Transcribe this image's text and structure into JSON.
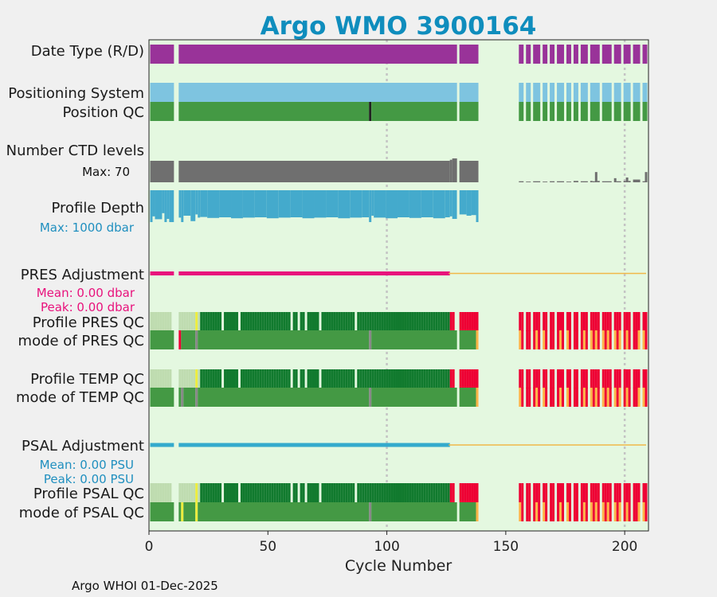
{
  "chart_data": {
    "type": "timeline-heatmap",
    "title": "Argo WMO 3900164",
    "xlabel": "Cycle Number",
    "xlim": [
      0,
      210
    ],
    "xticks": [
      0,
      50,
      100,
      150,
      200
    ],
    "xtick_labels": [
      "0",
      "50",
      "100",
      "150",
      "200"
    ],
    "reference_lines": [
      100,
      200
    ],
    "cycles_present": [
      [
        1,
        10
      ],
      [
        13,
        129
      ],
      [
        131,
        138
      ],
      [
        156,
        157
      ],
      [
        159,
        160
      ],
      [
        162,
        164
      ],
      [
        166,
        167
      ],
      [
        169,
        170
      ],
      [
        172,
        174
      ],
      [
        176,
        177
      ],
      [
        179,
        180
      ],
      [
        182,
        184
      ],
      [
        186,
        189
      ],
      [
        191,
        194
      ],
      [
        196,
        198
      ],
      [
        200,
        202
      ],
      [
        204,
        206
      ],
      [
        208,
        209
      ]
    ],
    "rows": {
      "data_type": {
        "label": "Date Type (R/D)",
        "value": "R",
        "color": "#993399"
      },
      "positioning_system": {
        "label": "Positioning System",
        "color": "#7ec4e0"
      },
      "position_qc": {
        "label": "Position QC",
        "color": "#449944",
        "flag_cycles": [
          93
        ],
        "flag_color": "#222222"
      },
      "n_levels": {
        "label": "Number CTD levels",
        "max_label": "Max: 70",
        "max": 70,
        "color": "#6f6f6f",
        "values": [
          [
            1,
            10,
            63
          ],
          [
            13,
            126,
            63
          ],
          [
            127,
            127,
            66
          ],
          [
            128,
            129,
            70
          ],
          [
            131,
            138,
            63
          ],
          [
            156,
            157,
            3
          ],
          [
            159,
            160,
            2
          ],
          [
            162,
            164,
            3
          ],
          [
            166,
            167,
            2
          ],
          [
            169,
            170,
            3
          ],
          [
            172,
            174,
            3
          ],
          [
            176,
            177,
            2
          ],
          [
            179,
            180,
            4
          ],
          [
            182,
            184,
            3
          ],
          [
            186,
            186,
            4
          ],
          [
            187,
            187,
            3
          ],
          [
            188,
            188,
            30
          ],
          [
            189,
            189,
            4
          ],
          [
            191,
            194,
            3
          ],
          [
            196,
            196,
            12
          ],
          [
            197,
            198,
            3
          ],
          [
            200,
            200,
            4
          ],
          [
            201,
            201,
            14
          ],
          [
            202,
            202,
            4
          ],
          [
            204,
            206,
            8
          ],
          [
            208,
            208,
            3
          ],
          [
            209,
            209,
            30
          ]
        ]
      },
      "profile_depth": {
        "label": "Profile Depth",
        "max_label": "Max: 1000 dbar",
        "max": 1000,
        "color": "#44aacc",
        "values": [
          [
            1,
            1,
            1000
          ],
          [
            2,
            2,
            820
          ],
          [
            3,
            5,
            910
          ],
          [
            6,
            6,
            720
          ],
          [
            7,
            7,
            1000
          ],
          [
            8,
            8,
            900
          ],
          [
            9,
            10,
            1000
          ],
          [
            13,
            13,
            860
          ],
          [
            14,
            14,
            1000
          ],
          [
            15,
            17,
            800
          ],
          [
            18,
            19,
            970
          ],
          [
            20,
            20,
            760
          ],
          [
            21,
            21,
            860
          ],
          [
            22,
            24,
            840
          ],
          [
            25,
            29,
            870
          ],
          [
            30,
            34,
            850
          ],
          [
            35,
            39,
            880
          ],
          [
            40,
            44,
            860
          ],
          [
            45,
            49,
            850
          ],
          [
            50,
            54,
            880
          ],
          [
            55,
            59,
            860
          ],
          [
            60,
            64,
            850
          ],
          [
            65,
            69,
            880
          ],
          [
            70,
            74,
            860
          ],
          [
            75,
            79,
            850
          ],
          [
            80,
            84,
            880
          ],
          [
            85,
            89,
            860
          ],
          [
            90,
            92,
            850
          ],
          [
            93,
            93,
            1000
          ],
          [
            94,
            94,
            800
          ],
          [
            95,
            99,
            860
          ],
          [
            100,
            104,
            880
          ],
          [
            105,
            109,
            850
          ],
          [
            110,
            114,
            870
          ],
          [
            115,
            119,
            850
          ],
          [
            120,
            124,
            880
          ],
          [
            125,
            126,
            850
          ],
          [
            127,
            127,
            820
          ],
          [
            128,
            129,
            900
          ],
          [
            131,
            133,
            760
          ],
          [
            134,
            135,
            800
          ],
          [
            136,
            137,
            780
          ],
          [
            138,
            138,
            1000
          ]
        ]
      },
      "pres_adjustment": {
        "label": "PRES Adjustment",
        "mean_label": "Mean: 0.00 dbar",
        "peak_label": "Peak: 0.00 dbar",
        "color": "#e8127c",
        "adjusted_segments": [
          [
            1,
            10
          ],
          [
            13,
            126
          ]
        ],
        "line_color": "#f0b848",
        "line_range": [
          126,
          209
        ]
      },
      "profile_pres_qc": {
        "label": "Profile PRES QC",
        "mode_label": "mode of PRES QC"
      },
      "profile_temp_qc": {
        "label": "Profile TEMP QC",
        "mode_label": "mode of TEMP QC"
      },
      "psal_adjustment": {
        "label": "PSAL Adjustment",
        "mean_label": "Mean: 0.00 PSU",
        "peak_label": "Peak: 0.00 PSU",
        "color": "#33aacc",
        "adjusted_segments": [
          [
            1,
            10
          ],
          [
            13,
            126
          ]
        ],
        "line_color": "#f0b848",
        "line_range": [
          126,
          209
        ]
      },
      "profile_psal_qc": {
        "label": "Profile PSAL QC",
        "mode_label": "mode of PSAL QC"
      }
    },
    "qc_colors": {
      "A": "#117a2e",
      "B": "#bfdcb0",
      "F": "#ee0033",
      "good": "#449944",
      "probably_good": "#eded3c",
      "bad": "#ee0033",
      "probably_bad": "#ffb347",
      "changed": "#888888"
    }
  },
  "footer": {
    "text": "Argo WHOI 01-Dec-2025"
  }
}
